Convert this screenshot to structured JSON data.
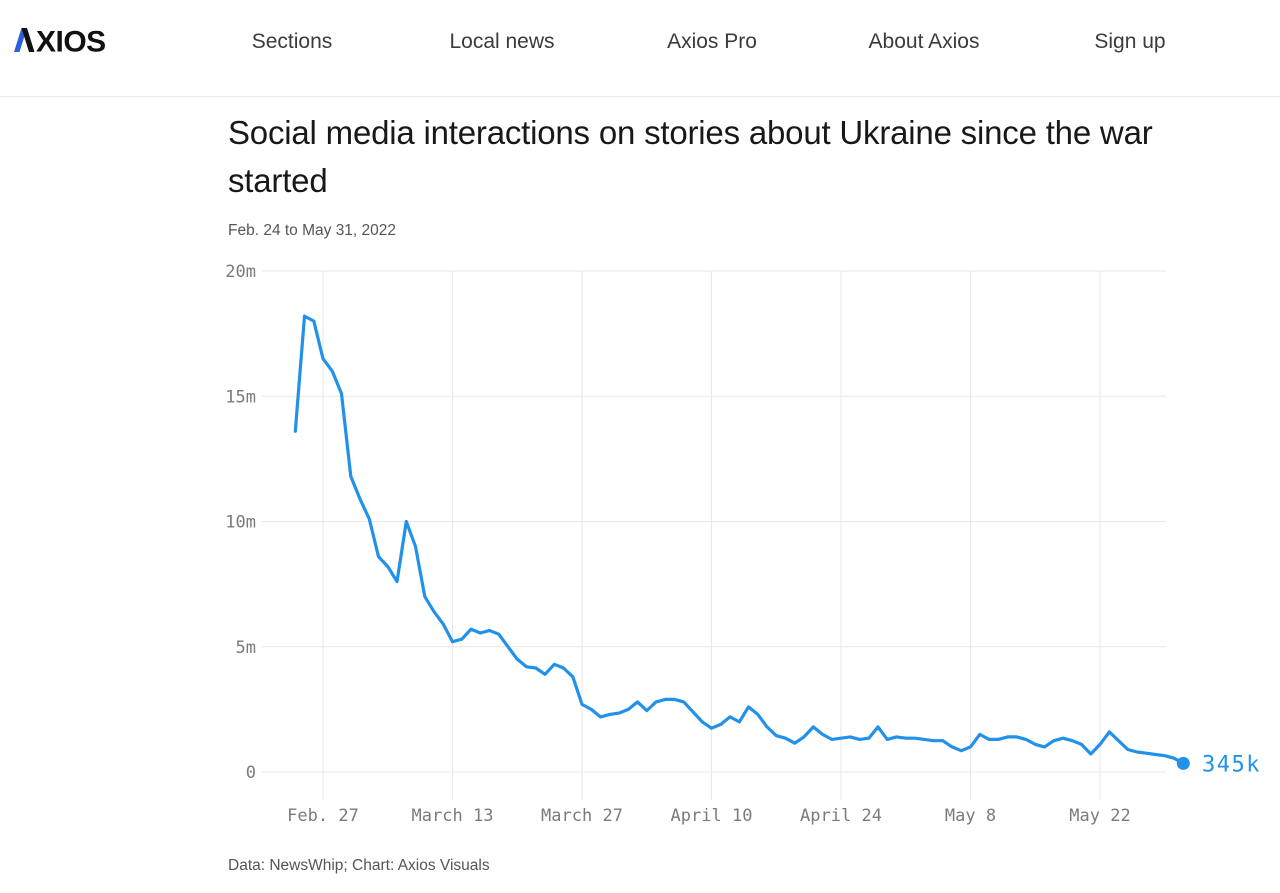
{
  "header": {
    "logo_text": "AXIOS",
    "logo_letters": "XIOS",
    "logo_blue": "#2e5ee0",
    "nav": [
      {
        "label": "Sections"
      },
      {
        "label": "Local news"
      },
      {
        "label": "Axios Pro"
      },
      {
        "label": "About Axios"
      },
      {
        "label": "Sign up"
      }
    ]
  },
  "article": {
    "title": "Social media interactions on stories about Ukraine since the war started",
    "date_range": "Feb. 24 to May 31, 2022",
    "source_note": "Data: NewsWhip; Chart: Axios Visuals"
  },
  "chart_data": {
    "type": "line",
    "title": "Social media interactions on stories about Ukraine since the war started",
    "subtitle": "Feb. 24 to May 31, 2022",
    "unit": "millions of interactions per day",
    "ylim": [
      0,
      20
    ],
    "grid": true,
    "legend": false,
    "line_color": "#2191ea",
    "grid_color": "#e7e7e7",
    "axis_label_color": "#7b7b7b",
    "end_label": "345k",
    "end_value_millions": 0.345,
    "y_ticks": [
      "0",
      "5m",
      "10m",
      "15m",
      "20m"
    ],
    "y_tick_values": [
      0,
      5,
      10,
      15,
      20
    ],
    "x_ticks": [
      "Feb. 27",
      "March 13",
      "March 27",
      "April 10",
      "April 24",
      "May 8",
      "May 22"
    ],
    "x_tick_day_index": [
      3,
      17,
      31,
      45,
      59,
      73,
      87
    ],
    "x": [
      "Feb. 24",
      "Feb. 25",
      "Feb. 26",
      "Feb. 27",
      "Feb. 28",
      "March 1",
      "March 2",
      "March 3",
      "March 4",
      "March 5",
      "March 6",
      "March 7",
      "March 8",
      "March 9",
      "March 10",
      "March 11",
      "March 12",
      "March 13",
      "March 14",
      "March 15",
      "March 16",
      "March 17",
      "March 18",
      "March 19",
      "March 20",
      "March 21",
      "March 22",
      "March 23",
      "March 24",
      "March 25",
      "March 26",
      "March 27",
      "March 28",
      "March 29",
      "March 30",
      "March 31",
      "April 1",
      "April 2",
      "April 3",
      "April 4",
      "April 5",
      "April 6",
      "April 7",
      "April 8",
      "April 9",
      "April 10",
      "April 11",
      "April 12",
      "April 13",
      "April 14",
      "April 15",
      "April 16",
      "April 17",
      "April 18",
      "April 19",
      "April 20",
      "April 21",
      "April 22",
      "April 23",
      "April 24",
      "April 25",
      "April 26",
      "April 27",
      "April 28",
      "April 29",
      "April 30",
      "May 1",
      "May 2",
      "May 3",
      "May 4",
      "May 5",
      "May 6",
      "May 7",
      "May 8",
      "May 9",
      "May 10",
      "May 11",
      "May 12",
      "May 13",
      "May 14",
      "May 15",
      "May 16",
      "May 17",
      "May 18",
      "May 19",
      "May 20",
      "May 21",
      "May 22",
      "May 23",
      "May 24",
      "May 25",
      "May 26",
      "May 27",
      "May 28",
      "May 29",
      "May 30",
      "May 31"
    ],
    "values": [
      13.6,
      18.2,
      18.0,
      16.5,
      16.0,
      15.1,
      11.8,
      10.9,
      10.1,
      8.6,
      8.2,
      7.6,
      10.0,
      9.0,
      7.0,
      6.4,
      5.9,
      5.2,
      5.3,
      5.7,
      5.55,
      5.65,
      5.5,
      5.0,
      4.5,
      4.2,
      4.15,
      3.9,
      4.3,
      4.15,
      3.8,
      2.7,
      2.5,
      2.2,
      2.3,
      2.35,
      2.5,
      2.8,
      2.45,
      2.8,
      2.9,
      2.9,
      2.8,
      2.4,
      2.0,
      1.75,
      1.9,
      2.2,
      2.0,
      2.6,
      2.3,
      1.8,
      1.45,
      1.35,
      1.15,
      1.4,
      1.8,
      1.5,
      1.3,
      1.35,
      1.4,
      1.3,
      1.35,
      1.8,
      1.3,
      1.4,
      1.35,
      1.35,
      1.3,
      1.25,
      1.25,
      1.0,
      0.85,
      1.0,
      1.5,
      1.3,
      1.3,
      1.4,
      1.4,
      1.3,
      1.1,
      1.0,
      1.25,
      1.35,
      1.25,
      1.1,
      0.72,
      1.1,
      1.6,
      1.25,
      0.9,
      0.8,
      0.75,
      0.7,
      0.65,
      0.55,
      0.345
    ]
  }
}
